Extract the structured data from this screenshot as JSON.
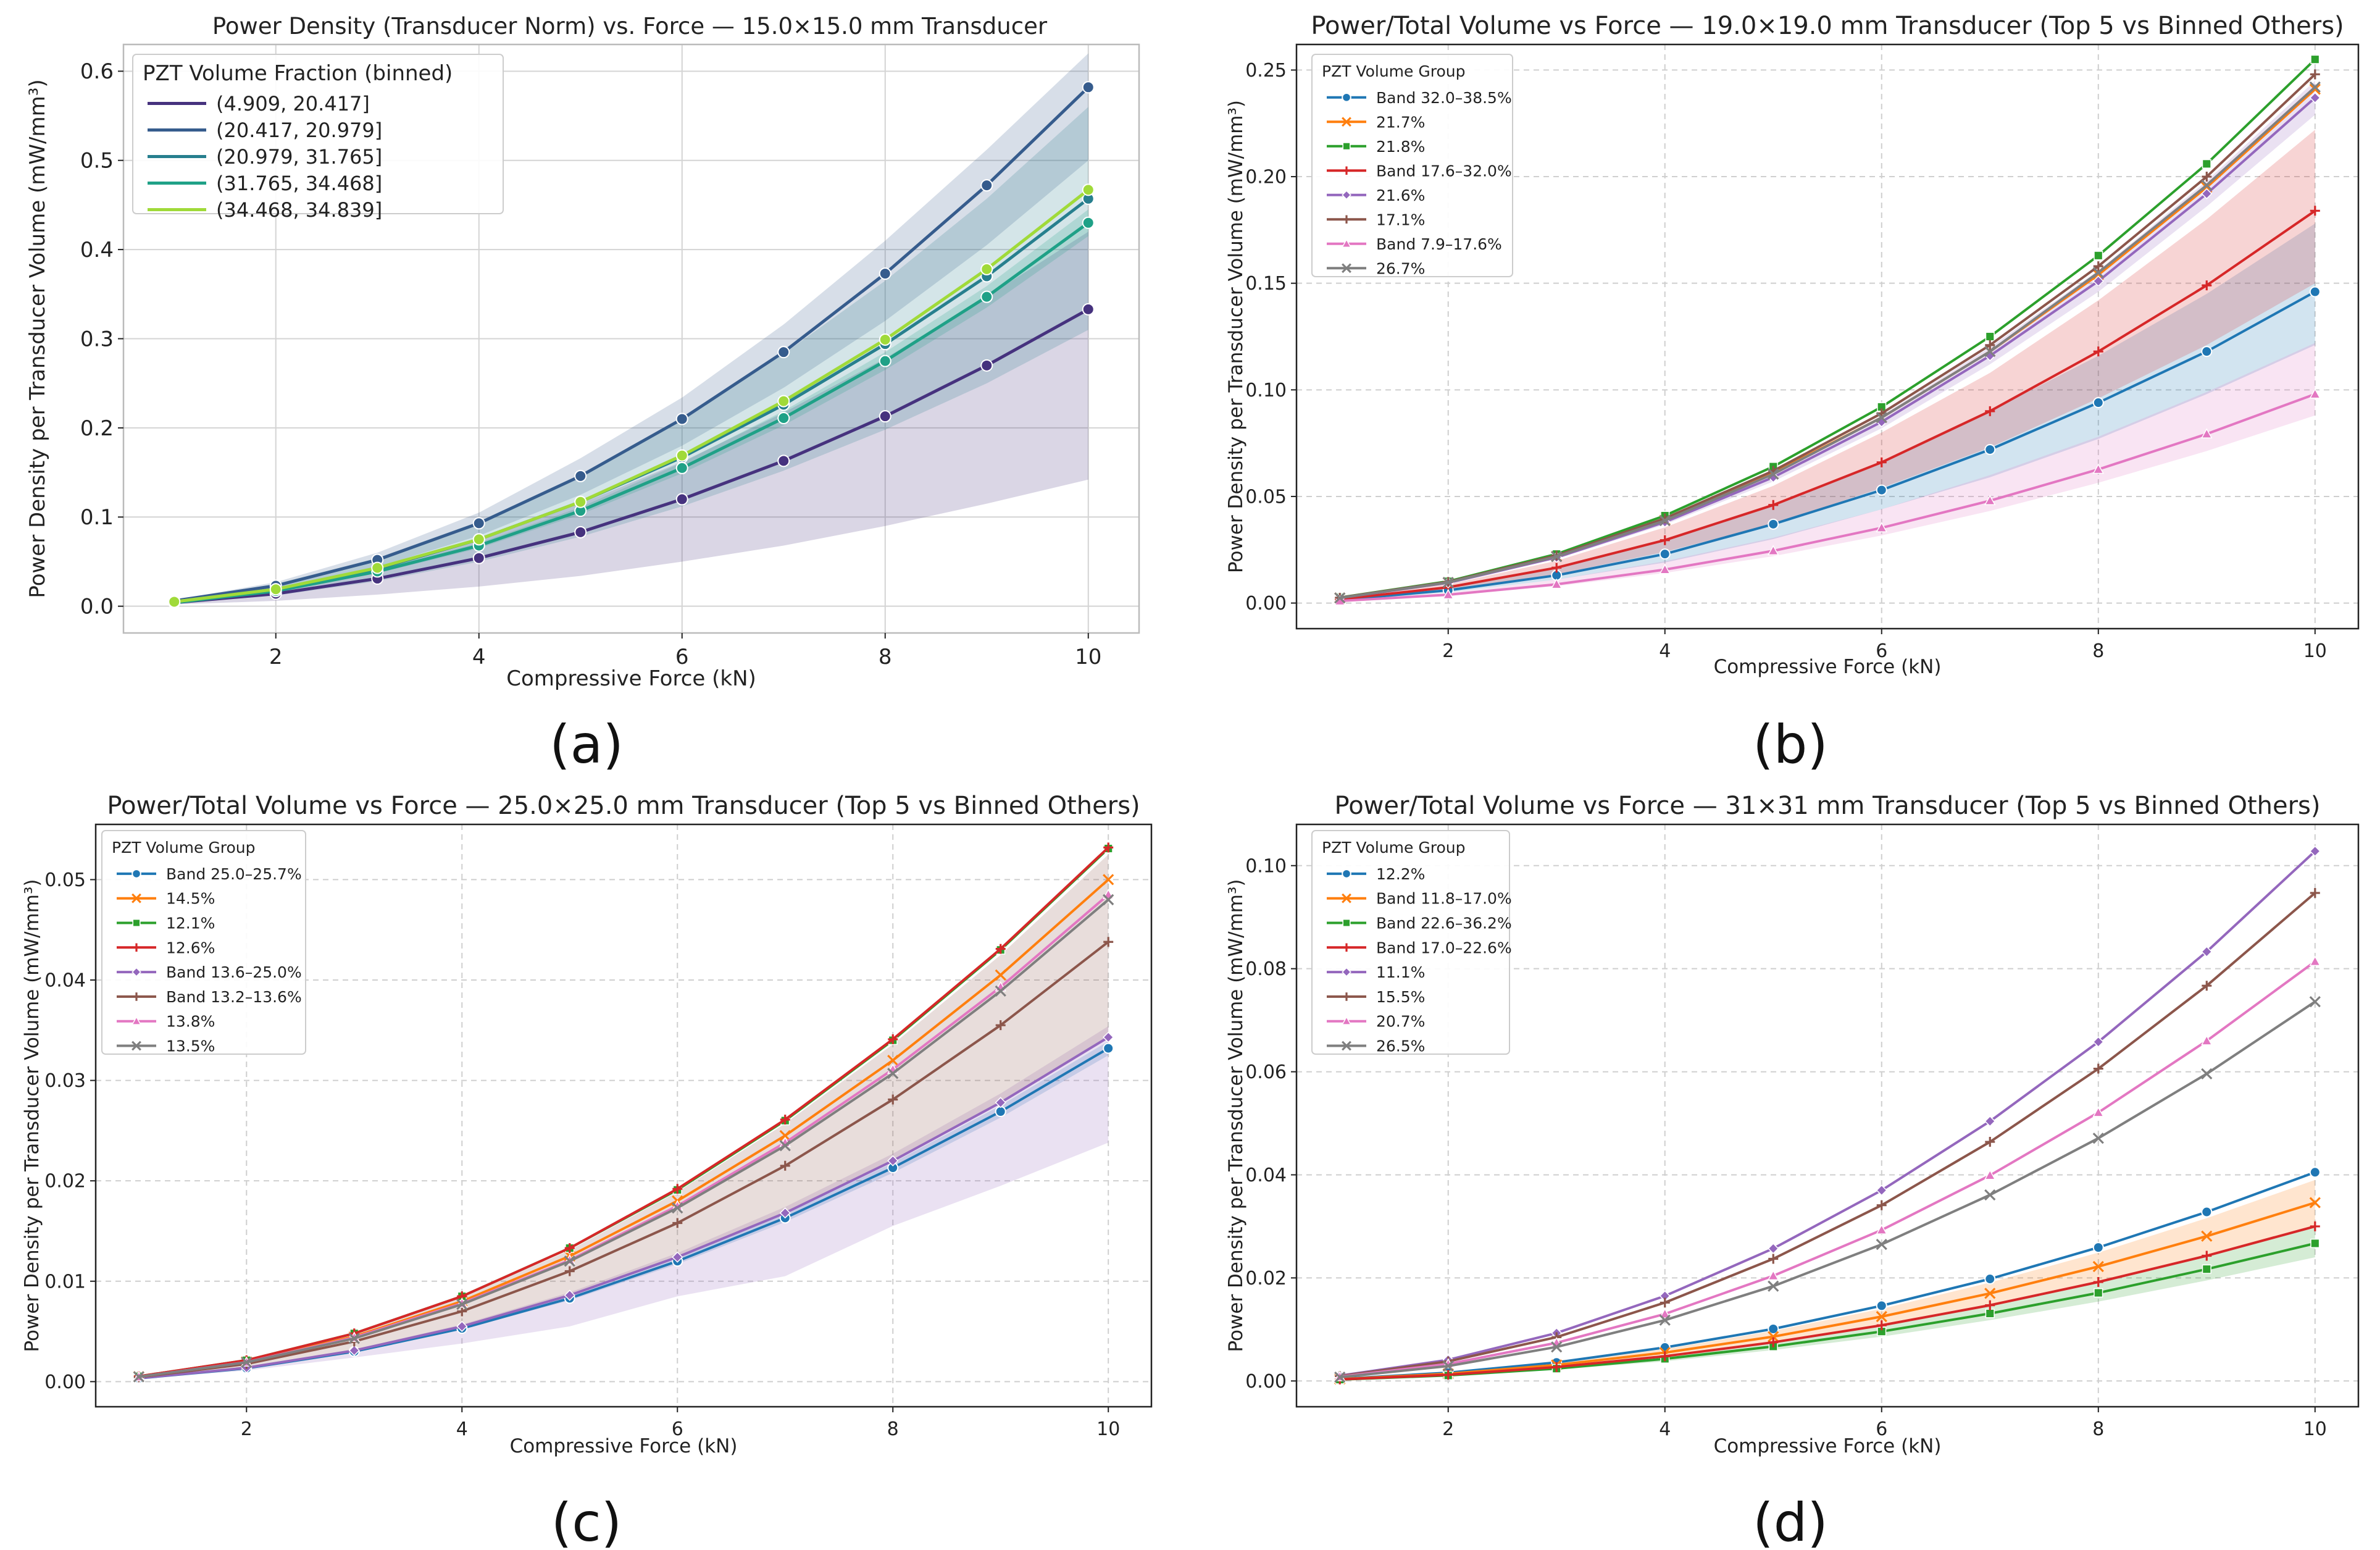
{
  "chart_data": [
    {
      "type": "line",
      "title": "Power Density (Transducer Norm) vs. Force — 15.0×15.0 mm Transducer",
      "xlabel": "Compressive Force (kN)",
      "ylabel": "Power Density per Transducer Volume (mW/mm³)",
      "caption": "(a)",
      "xlim": [
        0.5,
        10.5
      ],
      "ylim": [
        -0.03,
        0.63
      ],
      "xticks": [
        2,
        4,
        6,
        8,
        10
      ],
      "yticks": [
        0.0,
        0.1,
        0.2,
        0.3,
        0.4,
        0.5,
        0.6
      ],
      "ytick_decimals": 1,
      "grid": true,
      "legend_title": "PZT Volume Fraction (binned)",
      "legend_position": "top-left",
      "legend_style": "large",
      "x": [
        1,
        2,
        3,
        4,
        5,
        6,
        7,
        8,
        9,
        10
      ],
      "series": [
        {
          "name": "(4.909, 20.417]",
          "color": "#46327e",
          "marker": "o",
          "values": [
            0.004,
            0.014,
            0.031,
            0.054,
            0.083,
            0.12,
            0.163,
            0.213,
            0.27,
            0.333
          ],
          "band_lower": [
            0.002,
            0.006,
            0.013,
            0.022,
            0.034,
            0.05,
            0.068,
            0.09,
            0.115,
            0.142
          ],
          "band_upper": [
            0.006,
            0.02,
            0.043,
            0.075,
            0.115,
            0.162,
            0.217,
            0.278,
            0.347,
            0.42
          ]
        },
        {
          "name": "(20.417, 20.979]",
          "color": "#365c8d",
          "marker": "o",
          "values": [
            0.006,
            0.023,
            0.052,
            0.093,
            0.146,
            0.21,
            0.285,
            0.373,
            0.472,
            0.582
          ],
          "band_lower": [
            0.005,
            0.019,
            0.044,
            0.079,
            0.125,
            0.18,
            0.245,
            0.32,
            0.405,
            0.5
          ],
          "band_upper": [
            0.007,
            0.027,
            0.06,
            0.105,
            0.166,
            0.234,
            0.316,
            0.41,
            0.512,
            0.62
          ]
        },
        {
          "name": "(20.979, 31.765]",
          "color": "#277f8e",
          "marker": "o",
          "values": [
            0.005,
            0.019,
            0.042,
            0.075,
            0.117,
            0.167,
            0.226,
            0.294,
            0.37,
            0.457
          ],
          "band_lower": [
            0.003,
            0.012,
            0.028,
            0.05,
            0.078,
            0.112,
            0.152,
            0.198,
            0.25,
            0.31
          ],
          "band_upper": [
            0.007,
            0.025,
            0.054,
            0.095,
            0.147,
            0.21,
            0.283,
            0.365,
            0.457,
            0.56
          ]
        },
        {
          "name": "(31.765, 34.468]",
          "color": "#1fa187",
          "marker": "o",
          "values": [
            0.004,
            0.017,
            0.039,
            0.068,
            0.107,
            0.155,
            0.211,
            0.275,
            0.347,
            0.43
          ],
          "band_lower": [
            0.004,
            0.016,
            0.037,
            0.065,
            0.103,
            0.149,
            0.203,
            0.265,
            0.335,
            0.415
          ],
          "band_upper": [
            0.005,
            0.018,
            0.041,
            0.071,
            0.111,
            0.161,
            0.219,
            0.285,
            0.359,
            0.445
          ]
        },
        {
          "name": "(34.468, 34.839]",
          "color": "#a0da39",
          "marker": "o",
          "values": [
            0.005,
            0.019,
            0.043,
            0.075,
            0.117,
            0.169,
            0.23,
            0.299,
            0.378,
            0.467
          ]
        }
      ]
    },
    {
      "type": "line",
      "title": "Power/Total Volume vs Force — 19.0×19.0 mm Transducer (Top 5 vs Binned Others)",
      "xlabel": "Compressive Force (kN)",
      "ylabel": "Power Density per Transducer Volume (mW/mm³)",
      "caption": "(b)",
      "xlim": [
        0.6,
        10.4
      ],
      "ylim": [
        -0.012,
        0.262
      ],
      "xticks": [
        2,
        4,
        6,
        8,
        10
      ],
      "yticks": [
        0.0,
        0.05,
        0.1,
        0.15,
        0.2,
        0.25
      ],
      "ytick_decimals": 2,
      "grid": true,
      "legend_title": "PZT Volume Group",
      "legend_position": "top-left",
      "legend_style": "small",
      "x": [
        1,
        2,
        3,
        4,
        5,
        6,
        7,
        8,
        9,
        10
      ],
      "series": [
        {
          "name": "Band 32.0–38.5%",
          "color": "#1f77b4",
          "marker": "o",
          "values": [
            0.0015,
            0.006,
            0.013,
            0.023,
            0.037,
            0.053,
            0.072,
            0.094,
            0.118,
            0.146
          ],
          "band_lower": [
            0.001,
            0.005,
            0.011,
            0.019,
            0.03,
            0.044,
            0.059,
            0.077,
            0.098,
            0.121
          ],
          "band_upper": [
            0.002,
            0.008,
            0.017,
            0.03,
            0.046,
            0.066,
            0.09,
            0.116,
            0.145,
            0.178
          ]
        },
        {
          "name": "21.7%",
          "color": "#ff7f0e",
          "marker": "x",
          "values": [
            0.0024,
            0.0096,
            0.022,
            0.039,
            0.061,
            0.087,
            0.118,
            0.154,
            0.195,
            0.241
          ]
        },
        {
          "name": "21.8%",
          "color": "#2ca02c",
          "marker": "s",
          "values": [
            0.0026,
            0.0102,
            0.023,
            0.041,
            0.064,
            0.092,
            0.125,
            0.163,
            0.206,
            0.255
          ]
        },
        {
          "name": "Band 17.6–32.0%",
          "color": "#d62728",
          "marker": "+",
          "values": [
            0.0018,
            0.0074,
            0.0166,
            0.0295,
            0.046,
            0.066,
            0.09,
            0.118,
            0.149,
            0.184
          ],
          "band_lower": [
            0.0015,
            0.006,
            0.0135,
            0.024,
            0.037,
            0.054,
            0.073,
            0.096,
            0.121,
            0.15
          ],
          "band_upper": [
            0.0022,
            0.0088,
            0.0198,
            0.0355,
            0.055,
            0.08,
            0.108,
            0.142,
            0.18,
            0.222
          ]
        },
        {
          "name": "21.6%",
          "color": "#9467bd",
          "marker": "D",
          "values": [
            0.0024,
            0.0095,
            0.0214,
            0.038,
            0.059,
            0.085,
            0.116,
            0.151,
            0.192,
            0.237
          ],
          "band_lower": [
            0.0023,
            0.0092,
            0.0207,
            0.0368,
            0.057,
            0.082,
            0.112,
            0.146,
            0.186,
            0.229
          ],
          "band_upper": [
            0.0025,
            0.0098,
            0.0221,
            0.0392,
            0.061,
            0.088,
            0.12,
            0.156,
            0.198,
            0.245
          ]
        },
        {
          "name": "17.1%",
          "color": "#8c564b",
          "marker": "+",
          "values": [
            0.0025,
            0.0099,
            0.0223,
            0.0397,
            0.062,
            0.089,
            0.121,
            0.158,
            0.2,
            0.248
          ]
        },
        {
          "name": "Band 7.9–17.6%",
          "color": "#e377c2",
          "marker": "^",
          "values": [
            0.001,
            0.0039,
            0.0088,
            0.0157,
            0.0245,
            0.0353,
            0.048,
            0.0627,
            0.0793,
            0.098
          ],
          "band_lower": [
            0.0009,
            0.0035,
            0.0079,
            0.0141,
            0.022,
            0.0317,
            0.0432,
            0.0564,
            0.0713,
            0.088
          ],
          "band_upper": [
            0.0012,
            0.0049,
            0.011,
            0.0196,
            0.0306,
            0.044,
            0.06,
            0.078,
            0.099,
            0.122
          ]
        },
        {
          "name": "26.7%",
          "color": "#7f7f7f",
          "marker": "x",
          "values": [
            0.0024,
            0.0097,
            0.0218,
            0.0387,
            0.0605,
            0.087,
            0.118,
            0.155,
            0.196,
            0.242
          ]
        }
      ]
    },
    {
      "type": "line",
      "title": "Power/Total Volume vs Force — 25.0×25.0 mm Transducer (Top 5 vs Binned Others)",
      "xlabel": "Compressive Force (kN)",
      "ylabel": "Power Density per Transducer Volume (mW/mm³)",
      "caption": "(c)",
      "xlim": [
        0.6,
        10.4
      ],
      "ylim": [
        -0.0025,
        0.0555
      ],
      "xticks": [
        2,
        4,
        6,
        8,
        10
      ],
      "yticks": [
        0.0,
        0.01,
        0.02,
        0.03,
        0.04,
        0.05
      ],
      "ytick_decimals": 2,
      "grid": true,
      "legend_title": "PZT Volume Group",
      "legend_position": "top-left",
      "legend_style": "small",
      "x": [
        1,
        2,
        3,
        4,
        5,
        6,
        7,
        8,
        9,
        10
      ],
      "series": [
        {
          "name": "Band 25.0–25.7%",
          "color": "#1f77b4",
          "marker": "o",
          "values": [
            0.00033,
            0.00133,
            0.003,
            0.0053,
            0.0083,
            0.012,
            0.0163,
            0.0213,
            0.0269,
            0.0332
          ],
          "band_lower": [
            0.00032,
            0.0013,
            0.0029,
            0.0052,
            0.0081,
            0.0117,
            0.0159,
            0.0208,
            0.0263,
            0.0325
          ],
          "band_upper": [
            0.00034,
            0.00136,
            0.0031,
            0.0054,
            0.0085,
            0.0123,
            0.0167,
            0.0218,
            0.0275,
            0.0339
          ]
        },
        {
          "name": "14.5%",
          "color": "#ff7f0e",
          "marker": "x",
          "values": [
            0.0005,
            0.002,
            0.0045,
            0.008,
            0.0125,
            0.018,
            0.0245,
            0.032,
            0.0405,
            0.05
          ]
        },
        {
          "name": "12.1%",
          "color": "#2ca02c",
          "marker": "s",
          "values": [
            0.00053,
            0.00213,
            0.0048,
            0.0085,
            0.0133,
            0.0191,
            0.026,
            0.034,
            0.043,
            0.0531
          ]
        },
        {
          "name": "12.6%",
          "color": "#d62728",
          "marker": "+",
          "values": [
            0.00053,
            0.00213,
            0.0048,
            0.0085,
            0.0133,
            0.0192,
            0.0261,
            0.0341,
            0.0431,
            0.0532
          ]
        },
        {
          "name": "Band 13.6–25.0%",
          "color": "#9467bd",
          "marker": "D",
          "values": [
            0.00034,
            0.00138,
            0.0031,
            0.0055,
            0.0086,
            0.0124,
            0.0168,
            0.022,
            0.0278,
            0.0343
          ],
          "band_lower": [
            0.0003,
            0.0011,
            0.0024,
            0.0038,
            0.0055,
            0.0085,
            0.0105,
            0.0155,
            0.0195,
            0.0238
          ],
          "band_upper": [
            0.00036,
            0.00143,
            0.0032,
            0.0057,
            0.0089,
            0.0128,
            0.0174,
            0.0227,
            0.0287,
            0.0354
          ]
        },
        {
          "name": "Band 13.2–13.6%",
          "color": "#8c564b",
          "marker": "+",
          "values": [
            0.00044,
            0.00176,
            0.004,
            0.007,
            0.011,
            0.0158,
            0.0215,
            0.0281,
            0.0355,
            0.0438
          ],
          "band_lower": [
            0.00034,
            0.00138,
            0.0031,
            0.0055,
            0.0086,
            0.0124,
            0.0168,
            0.022,
            0.0278,
            0.0343
          ],
          "band_upper": [
            0.00052,
            0.0021,
            0.0047,
            0.0084,
            0.0131,
            0.0189,
            0.0257,
            0.0336,
            0.0425,
            0.0525
          ]
        },
        {
          "name": "13.8%",
          "color": "#e377c2",
          "marker": "^",
          "values": [
            0.00048,
            0.00194,
            0.0044,
            0.0078,
            0.0121,
            0.0175,
            0.0238,
            0.0311,
            0.0393,
            0.0485
          ]
        },
        {
          "name": "13.5%",
          "color": "#7f7f7f",
          "marker": "x",
          "values": [
            0.00048,
            0.00192,
            0.0043,
            0.0077,
            0.012,
            0.0173,
            0.0235,
            0.0307,
            0.0389,
            0.048
          ]
        }
      ]
    },
    {
      "type": "line",
      "title": "Power/Total Volume vs Force — 31×31 mm Transducer (Top 5 vs Binned Others)",
      "xlabel": "Compressive Force (kN)",
      "ylabel": "Power Density per Transducer Volume (mW/mm³)",
      "caption": "(d)",
      "xlim": [
        0.6,
        10.4
      ],
      "ylim": [
        -0.005,
        0.108
      ],
      "xticks": [
        2,
        4,
        6,
        8,
        10
      ],
      "yticks": [
        0.0,
        0.02,
        0.04,
        0.06,
        0.08,
        0.1
      ],
      "ytick_decimals": 2,
      "grid": true,
      "legend_title": "PZT Volume Group",
      "legend_position": "top-left",
      "legend_style": "small",
      "x": [
        1,
        2,
        3,
        4,
        5,
        6,
        7,
        8,
        9,
        10
      ],
      "series": [
        {
          "name": "12.2%",
          "color": "#1f77b4",
          "marker": "o",
          "values": [
            0.0004,
            0.0016,
            0.0036,
            0.0065,
            0.0101,
            0.0146,
            0.0198,
            0.0259,
            0.0328,
            0.0405
          ]
        },
        {
          "name": "Band 11.8–17.0%",
          "color": "#ff7f0e",
          "marker": "x",
          "values": [
            0.00035,
            0.0014,
            0.0031,
            0.0055,
            0.0086,
            0.0125,
            0.017,
            0.0222,
            0.0281,
            0.0346
          ],
          "band_lower": [
            0.0003,
            0.0012,
            0.0027,
            0.0048,
            0.0075,
            0.0108,
            0.0147,
            0.0192,
            0.0243,
            0.03
          ],
          "band_upper": [
            0.0004,
            0.0016,
            0.0035,
            0.0062,
            0.0097,
            0.014,
            0.0191,
            0.0249,
            0.0316,
            0.039
          ]
        },
        {
          "name": "Band 22.6–36.2%",
          "color": "#2ca02c",
          "marker": "s",
          "values": [
            0.00027,
            0.00107,
            0.0024,
            0.0043,
            0.0067,
            0.0096,
            0.0131,
            0.0171,
            0.0217,
            0.0267
          ],
          "band_lower": [
            0.00024,
            0.00096,
            0.0022,
            0.0038,
            0.006,
            0.0086,
            0.0118,
            0.0154,
            0.0195,
            0.024
          ],
          "band_upper": [
            0.0003,
            0.0012,
            0.0027,
            0.0048,
            0.0075,
            0.0108,
            0.0147,
            0.0192,
            0.0243,
            0.03
          ]
        },
        {
          "name": "Band 17.0–22.6%",
          "color": "#d62728",
          "marker": "+",
          "values": [
            0.0003,
            0.0012,
            0.0027,
            0.0048,
            0.0075,
            0.0108,
            0.0147,
            0.0192,
            0.0243,
            0.03
          ]
        },
        {
          "name": "11.1%",
          "color": "#9467bd",
          "marker": "D",
          "values": [
            0.00103,
            0.0041,
            0.0093,
            0.0165,
            0.0257,
            0.037,
            0.0504,
            0.0658,
            0.0833,
            0.1028
          ]
        },
        {
          "name": "15.5%",
          "color": "#8c564b",
          "marker": "+",
          "values": [
            0.00095,
            0.0038,
            0.0085,
            0.0152,
            0.0237,
            0.0341,
            0.0464,
            0.0606,
            0.0767,
            0.0947
          ]
        },
        {
          "name": "20.7%",
          "color": "#e377c2",
          "marker": "^",
          "values": [
            0.00082,
            0.0033,
            0.0074,
            0.013,
            0.0204,
            0.0293,
            0.0399,
            0.0521,
            0.066,
            0.0814
          ]
        },
        {
          "name": "26.5%",
          "color": "#7f7f7f",
          "marker": "x",
          "values": [
            0.00074,
            0.0029,
            0.0066,
            0.0118,
            0.0184,
            0.0265,
            0.0361,
            0.0471,
            0.0596,
            0.0736
          ]
        }
      ]
    }
  ]
}
